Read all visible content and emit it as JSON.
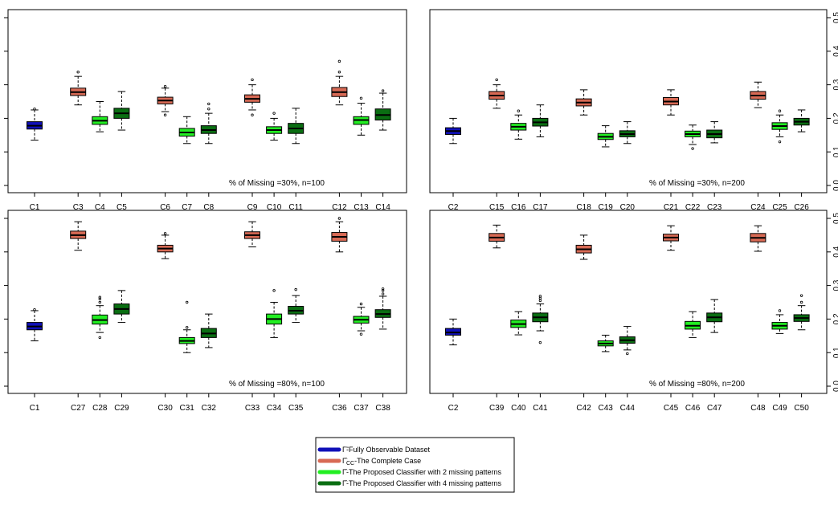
{
  "colors": {
    "full": "#1010b8",
    "cc": "#d86a55",
    "p2": "#22ee22",
    "p4": "#0a6e12"
  },
  "legend": {
    "items": [
      {
        "key": "full",
        "symbol": "Γ̃",
        "label": "-Fully Observable Dataset"
      },
      {
        "key": "cc",
        "symbol": "Γ̂",
        "sub": "CC",
        "label": "-The Complete Case"
      },
      {
        "key": "p2",
        "symbol": "Γ̂",
        "label": "-The Proposed Classifier with 2 missing patterns"
      },
      {
        "key": "p4",
        "symbol": "Γ̂",
        "label": "-The Proposed Classifier with 4 missing patterns"
      }
    ]
  },
  "chart_data": [
    {
      "type": "boxplot",
      "title": "",
      "annotation": "% of Missing =30%, n=100",
      "ylim": [
        0,
        0.5
      ],
      "yticks": [],
      "categories": [
        "C1",
        "C3",
        "C4",
        "C5",
        "C6",
        "C7",
        "C8",
        "C9",
        "C10",
        "C11",
        "C12",
        "C13",
        "C14"
      ],
      "boxes": [
        {
          "label": "C1",
          "group": "full",
          "slot": 0,
          "min": 0.135,
          "q1": 0.168,
          "median": 0.178,
          "q3": 0.19,
          "max": 0.225,
          "outliers": [
            0.228
          ]
        },
        {
          "label": "C3",
          "group": "cc",
          "slot": 2,
          "min": 0.24,
          "q1": 0.268,
          "median": 0.278,
          "q3": 0.29,
          "max": 0.325,
          "outliers": [
            0.338
          ]
        },
        {
          "label": "C4",
          "group": "p2",
          "slot": 3,
          "min": 0.16,
          "q1": 0.182,
          "median": 0.193,
          "q3": 0.205,
          "max": 0.25,
          "outliers": []
        },
        {
          "label": "C5",
          "group": "p4",
          "slot": 4,
          "min": 0.165,
          "q1": 0.2,
          "median": 0.215,
          "q3": 0.23,
          "max": 0.28,
          "outliers": []
        },
        {
          "label": "C6",
          "group": "cc",
          "slot": 6,
          "min": 0.22,
          "q1": 0.243,
          "median": 0.253,
          "q3": 0.263,
          "max": 0.29,
          "outliers": [
            0.21,
            0.295
          ]
        },
        {
          "label": "C7",
          "group": "p2",
          "slot": 7,
          "min": 0.125,
          "q1": 0.147,
          "median": 0.158,
          "q3": 0.17,
          "max": 0.205,
          "outliers": []
        },
        {
          "label": "C8",
          "group": "p4",
          "slot": 8,
          "min": 0.125,
          "q1": 0.155,
          "median": 0.165,
          "q3": 0.178,
          "max": 0.215,
          "outliers": [
            0.228,
            0.243
          ]
        },
        {
          "label": "C9",
          "group": "cc",
          "slot": 10,
          "min": 0.225,
          "q1": 0.248,
          "median": 0.258,
          "q3": 0.27,
          "max": 0.3,
          "outliers": [
            0.21,
            0.315
          ]
        },
        {
          "label": "C10",
          "group": "p2",
          "slot": 11,
          "min": 0.135,
          "q1": 0.155,
          "median": 0.165,
          "q3": 0.175,
          "max": 0.2,
          "outliers": [
            0.215
          ]
        },
        {
          "label": "C11",
          "group": "p4",
          "slot": 12,
          "min": 0.125,
          "q1": 0.155,
          "median": 0.17,
          "q3": 0.185,
          "max": 0.23,
          "outliers": []
        },
        {
          "label": "C12",
          "group": "cc",
          "slot": 14,
          "min": 0.24,
          "q1": 0.265,
          "median": 0.278,
          "q3": 0.292,
          "max": 0.325,
          "outliers": [
            0.338,
            0.37
          ]
        },
        {
          "label": "C13",
          "group": "p2",
          "slot": 15,
          "min": 0.15,
          "q1": 0.182,
          "median": 0.195,
          "q3": 0.205,
          "max": 0.245,
          "outliers": [
            0.26
          ]
        },
        {
          "label": "C14",
          "group": "p4",
          "slot": 16,
          "min": 0.165,
          "q1": 0.195,
          "median": 0.21,
          "q3": 0.228,
          "max": 0.275,
          "outliers": [
            0.282
          ]
        }
      ]
    },
    {
      "type": "boxplot",
      "title": "",
      "annotation": "% of Missing =30%, n=200",
      "ylim": [
        0,
        0.5
      ],
      "yticks": [
        "0.0",
        "0.1",
        "0.2",
        "0.3",
        "0.4",
        "0.5"
      ],
      "categories": [
        "C2",
        "C15",
        "C16",
        "C17",
        "C18",
        "C19",
        "C20",
        "C21",
        "C22",
        "C23",
        "C24",
        "C25",
        "C26"
      ],
      "boxes": [
        {
          "label": "C2",
          "group": "full",
          "slot": 0,
          "min": 0.125,
          "q1": 0.152,
          "median": 0.162,
          "q3": 0.172,
          "max": 0.2,
          "outliers": []
        },
        {
          "label": "C15",
          "group": "cc",
          "slot": 2,
          "min": 0.23,
          "q1": 0.257,
          "median": 0.268,
          "q3": 0.28,
          "max": 0.3,
          "outliers": [
            0.315
          ]
        },
        {
          "label": "C16",
          "group": "p2",
          "slot": 3,
          "min": 0.138,
          "q1": 0.165,
          "median": 0.175,
          "q3": 0.185,
          "max": 0.21,
          "outliers": [
            0.222
          ]
        },
        {
          "label": "C17",
          "group": "p4",
          "slot": 4,
          "min": 0.145,
          "q1": 0.177,
          "median": 0.188,
          "q3": 0.2,
          "max": 0.24,
          "outliers": []
        },
        {
          "label": "C18",
          "group": "cc",
          "slot": 6,
          "min": 0.21,
          "q1": 0.237,
          "median": 0.247,
          "q3": 0.258,
          "max": 0.285,
          "outliers": []
        },
        {
          "label": "C19",
          "group": "p2",
          "slot": 7,
          "min": 0.115,
          "q1": 0.137,
          "median": 0.145,
          "q3": 0.155,
          "max": 0.178,
          "outliers": []
        },
        {
          "label": "C20",
          "group": "p4",
          "slot": 8,
          "min": 0.125,
          "q1": 0.145,
          "median": 0.153,
          "q3": 0.163,
          "max": 0.19,
          "outliers": []
        },
        {
          "label": "C21",
          "group": "cc",
          "slot": 10,
          "min": 0.21,
          "q1": 0.24,
          "median": 0.25,
          "q3": 0.262,
          "max": 0.285,
          "outliers": []
        },
        {
          "label": "C22",
          "group": "p2",
          "slot": 11,
          "min": 0.122,
          "q1": 0.145,
          "median": 0.153,
          "q3": 0.162,
          "max": 0.18,
          "outliers": [
            0.11
          ]
        },
        {
          "label": "C23",
          "group": "p4",
          "slot": 12,
          "min": 0.127,
          "q1": 0.142,
          "median": 0.153,
          "q3": 0.165,
          "max": 0.19,
          "outliers": []
        },
        {
          "label": "C24",
          "group": "cc",
          "slot": 14,
          "min": 0.232,
          "q1": 0.257,
          "median": 0.268,
          "q3": 0.28,
          "max": 0.308,
          "outliers": []
        },
        {
          "label": "C25",
          "group": "p2",
          "slot": 15,
          "min": 0.145,
          "q1": 0.167,
          "median": 0.177,
          "q3": 0.187,
          "max": 0.21,
          "outliers": [
            0.13,
            0.222
          ]
        },
        {
          "label": "C26",
          "group": "p4",
          "slot": 16,
          "min": 0.16,
          "q1": 0.18,
          "median": 0.19,
          "q3": 0.2,
          "max": 0.225,
          "outliers": []
        }
      ]
    },
    {
      "type": "boxplot",
      "title": "",
      "annotation": "% of Missing =80%, n=100",
      "ylim": [
        0,
        0.5
      ],
      "yticks": [],
      "categories": [
        "C1",
        "C27",
        "C28",
        "C29",
        "C30",
        "C31",
        "C32",
        "C33",
        "C34",
        "C35",
        "C36",
        "C37",
        "C38"
      ],
      "boxes": [
        {
          "label": "C1",
          "group": "full",
          "slot": 0,
          "min": 0.135,
          "q1": 0.168,
          "median": 0.178,
          "q3": 0.19,
          "max": 0.225,
          "outliers": [
            0.228
          ]
        },
        {
          "label": "C27",
          "group": "cc",
          "slot": 2,
          "min": 0.405,
          "q1": 0.44,
          "median": 0.45,
          "q3": 0.462,
          "max": 0.49,
          "outliers": []
        },
        {
          "label": "C28",
          "group": "p2",
          "slot": 3,
          "min": 0.16,
          "q1": 0.185,
          "median": 0.197,
          "q3": 0.212,
          "max": 0.24,
          "outliers": [
            0.145,
            0.25,
            0.26,
            0.265
          ]
        },
        {
          "label": "C29",
          "group": "p4",
          "slot": 4,
          "min": 0.19,
          "q1": 0.215,
          "median": 0.23,
          "q3": 0.245,
          "max": 0.285,
          "outliers": []
        },
        {
          "label": "C30",
          "group": "cc",
          "slot": 6,
          "min": 0.38,
          "q1": 0.4,
          "median": 0.41,
          "q3": 0.42,
          "max": 0.45,
          "outliers": [
            0.455
          ]
        },
        {
          "label": "C31",
          "group": "p2",
          "slot": 7,
          "min": 0.1,
          "q1": 0.127,
          "median": 0.135,
          "q3": 0.145,
          "max": 0.168,
          "outliers": [
            0.175,
            0.25
          ]
        },
        {
          "label": "C32",
          "group": "p4",
          "slot": 8,
          "min": 0.115,
          "q1": 0.145,
          "median": 0.157,
          "q3": 0.172,
          "max": 0.215,
          "outliers": []
        },
        {
          "label": "C33",
          "group": "cc",
          "slot": 10,
          "min": 0.415,
          "q1": 0.44,
          "median": 0.45,
          "q3": 0.46,
          "max": 0.49,
          "outliers": []
        },
        {
          "label": "C34",
          "group": "p2",
          "slot": 11,
          "min": 0.145,
          "q1": 0.185,
          "median": 0.2,
          "q3": 0.215,
          "max": 0.25,
          "outliers": [
            0.285
          ]
        },
        {
          "label": "C35",
          "group": "p4",
          "slot": 12,
          "min": 0.19,
          "q1": 0.215,
          "median": 0.225,
          "q3": 0.238,
          "max": 0.27,
          "outliers": [
            0.288
          ]
        },
        {
          "label": "C36",
          "group": "cc",
          "slot": 14,
          "min": 0.4,
          "q1": 0.432,
          "median": 0.445,
          "q3": 0.458,
          "max": 0.49,
          "outliers": [
            0.5
          ]
        },
        {
          "label": "C37",
          "group": "p2",
          "slot": 15,
          "min": 0.165,
          "q1": 0.188,
          "median": 0.198,
          "q3": 0.208,
          "max": 0.235,
          "outliers": [
            0.155,
            0.245
          ]
        },
        {
          "label": "C38",
          "group": "p4",
          "slot": 16,
          "min": 0.17,
          "q1": 0.205,
          "median": 0.215,
          "q3": 0.228,
          "max": 0.268,
          "outliers": [
            0.275,
            0.285,
            0.29
          ]
        }
      ]
    },
    {
      "type": "boxplot",
      "title": "",
      "annotation": "% of Missing =80%, n=200",
      "ylim": [
        0,
        0.5
      ],
      "yticks": [
        "0.0",
        "0.1",
        "0.2",
        "0.3",
        "0.4",
        "0.5"
      ],
      "categories": [
        "C2",
        "C39",
        "C40",
        "C41",
        "C42",
        "C43",
        "C44",
        "C45",
        "C46",
        "C47",
        "C48",
        "C49",
        "C50"
      ],
      "boxes": [
        {
          "label": "C2",
          "group": "full",
          "slot": 0,
          "min": 0.123,
          "q1": 0.152,
          "median": 0.16,
          "q3": 0.172,
          "max": 0.2,
          "outliers": []
        },
        {
          "label": "C39",
          "group": "cc",
          "slot": 2,
          "min": 0.412,
          "q1": 0.432,
          "median": 0.443,
          "q3": 0.455,
          "max": 0.48,
          "outliers": []
        },
        {
          "label": "C40",
          "group": "p2",
          "slot": 3,
          "min": 0.153,
          "q1": 0.175,
          "median": 0.185,
          "q3": 0.197,
          "max": 0.222,
          "outliers": []
        },
        {
          "label": "C41",
          "group": "p4",
          "slot": 4,
          "min": 0.165,
          "q1": 0.192,
          "median": 0.205,
          "q3": 0.218,
          "max": 0.245,
          "outliers": [
            0.13,
            0.255,
            0.262,
            0.268
          ]
        },
        {
          "label": "C42",
          "group": "cc",
          "slot": 6,
          "min": 0.378,
          "q1": 0.397,
          "median": 0.408,
          "q3": 0.42,
          "max": 0.45,
          "outliers": []
        },
        {
          "label": "C43",
          "group": "p2",
          "slot": 7,
          "min": 0.103,
          "q1": 0.12,
          "median": 0.127,
          "q3": 0.135,
          "max": 0.152,
          "outliers": []
        },
        {
          "label": "C44",
          "group": "p4",
          "slot": 8,
          "min": 0.108,
          "q1": 0.128,
          "median": 0.137,
          "q3": 0.147,
          "max": 0.178,
          "outliers": [
            0.097
          ]
        },
        {
          "label": "C45",
          "group": "cc",
          "slot": 10,
          "min": 0.405,
          "q1": 0.433,
          "median": 0.443,
          "q3": 0.453,
          "max": 0.478,
          "outliers": []
        },
        {
          "label": "C46",
          "group": "p2",
          "slot": 11,
          "min": 0.145,
          "q1": 0.17,
          "median": 0.18,
          "q3": 0.193,
          "max": 0.222,
          "outliers": []
        },
        {
          "label": "C47",
          "group": "p4",
          "slot": 12,
          "min": 0.16,
          "q1": 0.192,
          "median": 0.205,
          "q3": 0.218,
          "max": 0.258,
          "outliers": []
        },
        {
          "label": "C48",
          "group": "cc",
          "slot": 14,
          "min": 0.402,
          "q1": 0.43,
          "median": 0.442,
          "q3": 0.455,
          "max": 0.478,
          "outliers": []
        },
        {
          "label": "C49",
          "group": "p2",
          "slot": 15,
          "min": 0.157,
          "q1": 0.17,
          "median": 0.18,
          "q3": 0.19,
          "max": 0.213,
          "outliers": [
            0.225
          ]
        },
        {
          "label": "C50",
          "group": "p4",
          "slot": 16,
          "min": 0.168,
          "q1": 0.193,
          "median": 0.203,
          "q3": 0.213,
          "max": 0.24,
          "outliers": [
            0.25,
            0.27
          ]
        }
      ]
    }
  ]
}
